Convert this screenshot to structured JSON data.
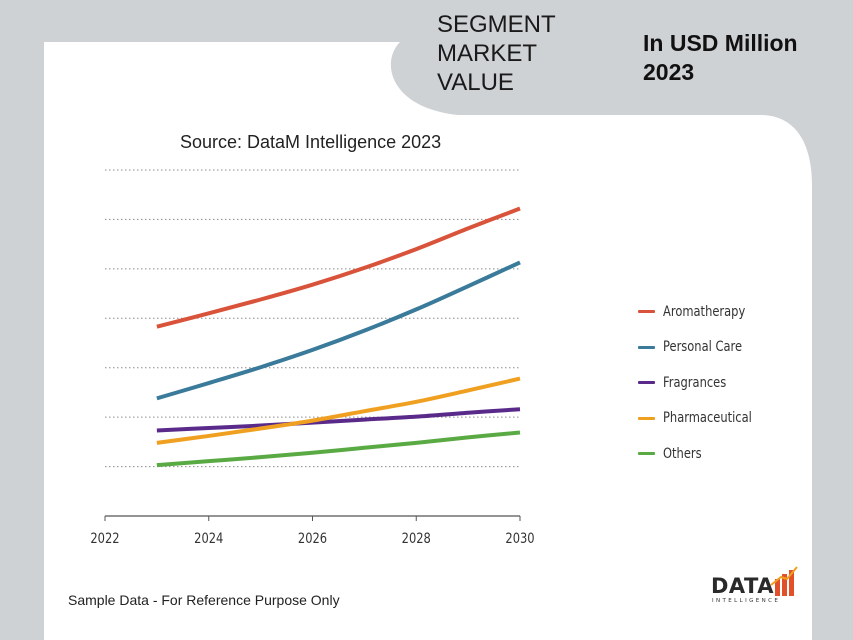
{
  "header": {
    "segment_title": "SEGMENT\nMARKET\nVALUE",
    "unit_title": "In USD Million\n2023"
  },
  "chart_data": {
    "type": "line",
    "title": "",
    "subtitle": "Source: DataM Intelligence 2023",
    "xlabel": "",
    "ylabel": "",
    "x_ticks": [
      "2022",
      "2024",
      "2026",
      "2028",
      "2030"
    ],
    "xlim": [
      2022,
      2030
    ],
    "ylim": [
      0,
      7
    ],
    "grid": true,
    "legend_position": "right",
    "x": [
      2023,
      2024,
      2025,
      2026,
      2027,
      2028,
      2029,
      2030
    ],
    "series": [
      {
        "name": "Aromatherapy",
        "color": "#d9533a",
        "values": [
          3.83,
          4.1,
          4.38,
          4.68,
          5.02,
          5.4,
          5.82,
          6.22
        ]
      },
      {
        "name": "Personal Care",
        "color": "#3a7a9a",
        "values": [
          2.38,
          2.69,
          3.01,
          3.36,
          3.75,
          4.18,
          4.65,
          5.13
        ]
      },
      {
        "name": "Fragrances",
        "color": "#5a2a8a",
        "values": [
          1.73,
          1.78,
          1.83,
          1.89,
          1.95,
          2.01,
          2.09,
          2.16
        ]
      },
      {
        "name": "Pharmaceutical",
        "color": "#f0a020",
        "values": [
          1.48,
          1.62,
          1.77,
          1.93,
          2.12,
          2.31,
          2.54,
          2.78
        ]
      },
      {
        "name": "Others",
        "color": "#5aaa44",
        "values": [
          1.03,
          1.11,
          1.19,
          1.28,
          1.38,
          1.48,
          1.59,
          1.69
        ]
      }
    ]
  },
  "footer": {
    "note": "Sample Data - For Reference Purpose Only",
    "logo_word": "DATA",
    "logo_sub": "INTELLIGENCE"
  }
}
